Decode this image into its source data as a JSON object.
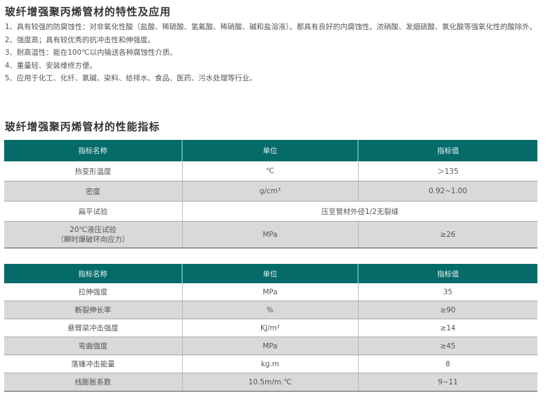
{
  "section1": {
    "title": "玻纤增强聚丙烯管材的特性及应用",
    "items": [
      "1、具有较强的防腐蚀性：对非氧化性酸（盐酸、稀硫酸、氢氟酸、稀硝酸、碱和盐溶液）。都具有良好的内腐蚀性。浓硝酸、发烟硫酸、氯化酸等强氧化性的酸除外。",
      "2、强度高；具有较优秀的抗冲击性和伸强度。",
      "3、耐高温性：能在100℃以内输送各种腐蚀性介质。",
      "4、重量轻、安装维修方便。",
      "5、应用于化工、化纤、氯碱、染料、给排水、食品、医药、污水处理等行业。"
    ]
  },
  "section2": {
    "title": "玻纤增强聚丙烯管材的性能指标",
    "header_color": "#046b69",
    "table1": {
      "headers": [
        "指标名称",
        "单位",
        "指标值"
      ],
      "rows": [
        [
          "热变形温度",
          "℃",
          "＞135"
        ],
        [
          "密度",
          "g/cm³",
          "0.92~1.00"
        ],
        [
          "扁平试验",
          "压至管材外径1/2无裂缝"
        ],
        [
          "20℃液压试验",
          "（瞬时爆破环向应力）",
          "MPa",
          "≥26"
        ]
      ]
    },
    "table2": {
      "headers": [
        "指标名称",
        "单位",
        "指标值"
      ],
      "rows": [
        [
          "拉伸强度",
          "MPa",
          "35"
        ],
        [
          "断裂伸长率",
          "%",
          "≥90"
        ],
        [
          "悬臂梁冲击强度",
          "KJ/m²",
          "≥14"
        ],
        [
          "弯曲强度",
          "MPa",
          "≥45"
        ],
        [
          "落锤冲击能量",
          "kg.m",
          "8"
        ],
        [
          "线膨胀系数",
          "10.5m/m.℃",
          "9~11"
        ]
      ]
    }
  }
}
